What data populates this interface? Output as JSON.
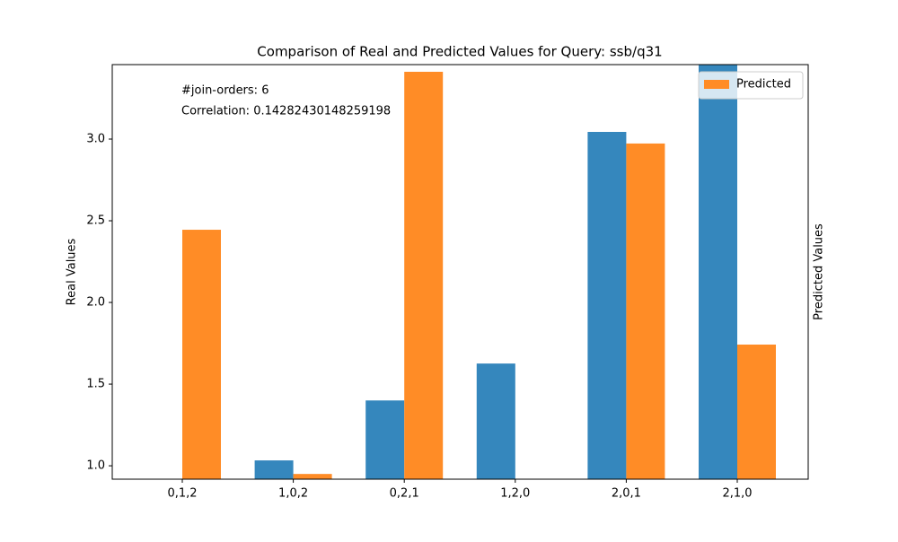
{
  "chart_data": {
    "type": "bar",
    "title": "Comparison of Real and Predicted Values for Query: ssb/q31",
    "ylabel": "Real Values",
    "y2label": "Predicted Values",
    "annotations": [
      "#join-orders: 6",
      "Correlation: 0.14282430148259198"
    ],
    "categories": [
      "0,1,2",
      "1,0,2",
      "0,2,1",
      "1,2,0",
      "2,0,1",
      "2,1,0"
    ],
    "series": [
      {
        "color": "#3587bd",
        "values": [
          0.9,
          1.033,
          1.4,
          1.626,
          3.044,
          3.5
        ]
      },
      {
        "name": "Predicted",
        "color": "#ff8c26",
        "axis": "y2",
        "values": [
          2.445,
          0.95,
          3.412,
          0.9,
          2.973,
          1.742
        ]
      }
    ],
    "ylim": [
      0.918,
      3.456
    ],
    "yticks": [
      {
        "value": 1,
        "label": "1.0"
      },
      1.5,
      {
        "value": 2,
        "label": "2.0"
      },
      2.5,
      {
        "value": 3,
        "label": "3.0"
      }
    ],
    "y2lim": [
      0.918,
      3.456
    ],
    "legend": "upper right"
  }
}
